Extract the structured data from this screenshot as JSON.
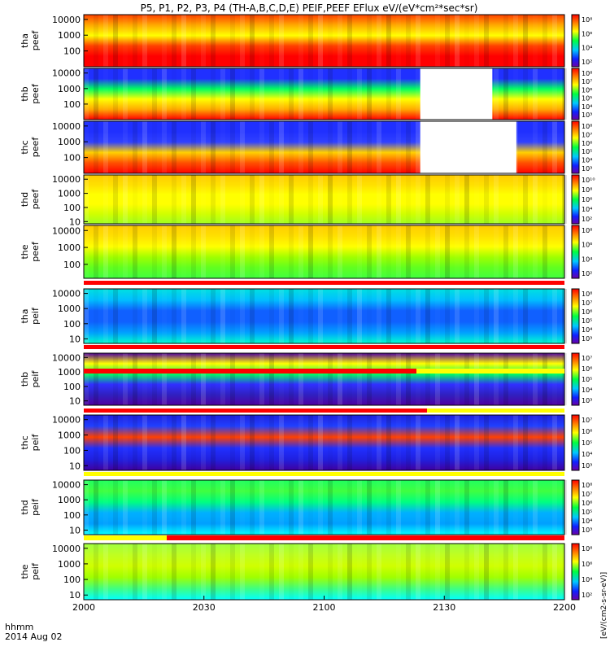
{
  "title": "P5, P1, P2, P3, P4 (TH-A,B,C,D,E) PEIF,PEEF EFlux eV/(eV*cm²*sec*sr)",
  "x_axis": {
    "ticks": [
      "2000",
      "2030",
      "2100",
      "2130",
      "2200"
    ],
    "label_line1": "hhmm",
    "label_line2": "2014 Aug 02"
  },
  "colorbar_units_label": "[eV/(cm2-s-sr-eV)]",
  "chart_data": {
    "type": "heatmap",
    "title": "P5, P1, P2, P3, P4 (TH-A,B,C,D,E) PEIF,PEEF EFlux eV/(eV*cm²*sec*sr)",
    "x_range": [
      "2000",
      "2200"
    ],
    "x_unit": "hhmm (UT), 2014 Aug 02",
    "y_scale": "log",
    "y_unit": "eV",
    "colormap": "rainbow (purple-blue-cyan-green-yellow-red)",
    "panels": [
      {
        "probe": "tha",
        "species": "peef",
        "ylabel": [
          "tha",
          "peef"
        ],
        "y_ticks": [
          "10000",
          "1000",
          "100"
        ],
        "y_range": [
          10,
          20000
        ],
        "colorbar_ticks": [
          "10⁸",
          "10⁶",
          "10⁴",
          "10²"
        ],
        "description": "high flux (red) below ~300 eV, yellow 1000-10000 eV, orange top"
      },
      {
        "probe": "thb",
        "species": "peef",
        "ylabel": [
          "thb",
          "peef"
        ],
        "y_ticks": [
          "10000",
          "1000",
          "100"
        ],
        "y_range": [
          10,
          20000
        ],
        "colorbar_ticks": [
          "10⁸",
          "10⁷",
          "10⁶",
          "10⁵",
          "10⁴",
          "10³"
        ],
        "data_gap": [
          "2124",
          "2142"
        ],
        "description": "blue/noise above ~2000 eV, green-yellow band near 1000 eV, red below 100 eV"
      },
      {
        "probe": "thc",
        "species": "peef",
        "ylabel": [
          "thc",
          "peef"
        ],
        "y_ticks": [
          "10000",
          "1000",
          "100"
        ],
        "y_range": [
          10,
          20000
        ],
        "colorbar_ticks": [
          "10⁸",
          "10⁷",
          "10⁶",
          "10⁵",
          "10⁴",
          "10³"
        ],
        "data_gap": [
          "2124",
          "2148"
        ],
        "description": "blue/noise above ~1500 eV, red below 100 eV"
      },
      {
        "probe": "thd",
        "species": "peef",
        "ylabel": [
          "thd",
          "peef"
        ],
        "y_ticks": [
          "10000",
          "1000",
          "100",
          "10"
        ],
        "y_range": [
          7,
          20000
        ],
        "colorbar_ticks": [
          "10¹⁰",
          "10⁸",
          "10⁶",
          "10⁴",
          "10²"
        ],
        "description": "mostly yellow, green-yellow at low energies"
      },
      {
        "probe": "the",
        "species": "peef",
        "ylabel": [
          "the",
          "peef"
        ],
        "y_ticks": [
          "10000",
          "1000",
          "100"
        ],
        "y_range": [
          15,
          20000
        ],
        "colorbar_ticks": [
          "10⁸",
          "10⁶",
          "10⁴",
          "10²"
        ],
        "description": "yellow above ~500 eV, green below; bright yellow strip near 2005"
      },
      {
        "probe": "tha",
        "species": "peif",
        "ylabel": [
          "tha",
          "peif"
        ],
        "y_ticks": [
          "10000",
          "1000",
          "100",
          "10"
        ],
        "y_range": [
          5,
          20000
        ],
        "colorbar_ticks": [
          "10⁸",
          "10⁷",
          "10⁶",
          "10⁵",
          "10⁴",
          "10³"
        ],
        "description": "cyan-green overall, blue 30-300 eV"
      },
      {
        "probe": "thb",
        "species": "peif",
        "ylabel": [
          "thb",
          "peif"
        ],
        "y_ticks": [
          "10000",
          "1000",
          "100",
          "10"
        ],
        "y_range": [
          5,
          20000
        ],
        "colorbar_ticks": [
          "10⁷",
          "10⁶",
          "10⁵",
          "10⁴",
          "10³"
        ],
        "description": "purple/black noise low energies, cyan-green-yellow band near 1000-3000 eV"
      },
      {
        "probe": "thc",
        "species": "peif",
        "ylabel": [
          "thc",
          "peif"
        ],
        "y_ticks": [
          "10000",
          "1000",
          "100",
          "10"
        ],
        "y_range": [
          5,
          20000
        ],
        "colorbar_ticks": [
          "10⁷",
          "10⁶",
          "10⁵",
          "10⁴",
          "10³"
        ],
        "description": "blue/purple noise, orange-red line near 700 eV"
      },
      {
        "probe": "thd",
        "species": "peif",
        "ylabel": [
          "thd",
          "peif"
        ],
        "y_ticks": [
          "10000",
          "1000",
          "100",
          "10"
        ],
        "y_range": [
          5,
          20000
        ],
        "colorbar_ticks": [
          "10⁸",
          "10⁷",
          "10⁶",
          "10⁵",
          "10⁴",
          "10³"
        ],
        "description": "green at high energies, cyan-blue 30-300 eV"
      },
      {
        "probe": "the",
        "species": "peif",
        "ylabel": [
          "the",
          "peif"
        ],
        "y_ticks": [
          "10000",
          "1000",
          "100",
          "10"
        ],
        "y_range": [
          5,
          20000
        ],
        "colorbar_ticks": [
          "10⁸",
          "10⁶",
          "10⁴",
          "10²"
        ],
        "description": "green-yellow overall, cyan below ~20 eV"
      }
    ]
  }
}
